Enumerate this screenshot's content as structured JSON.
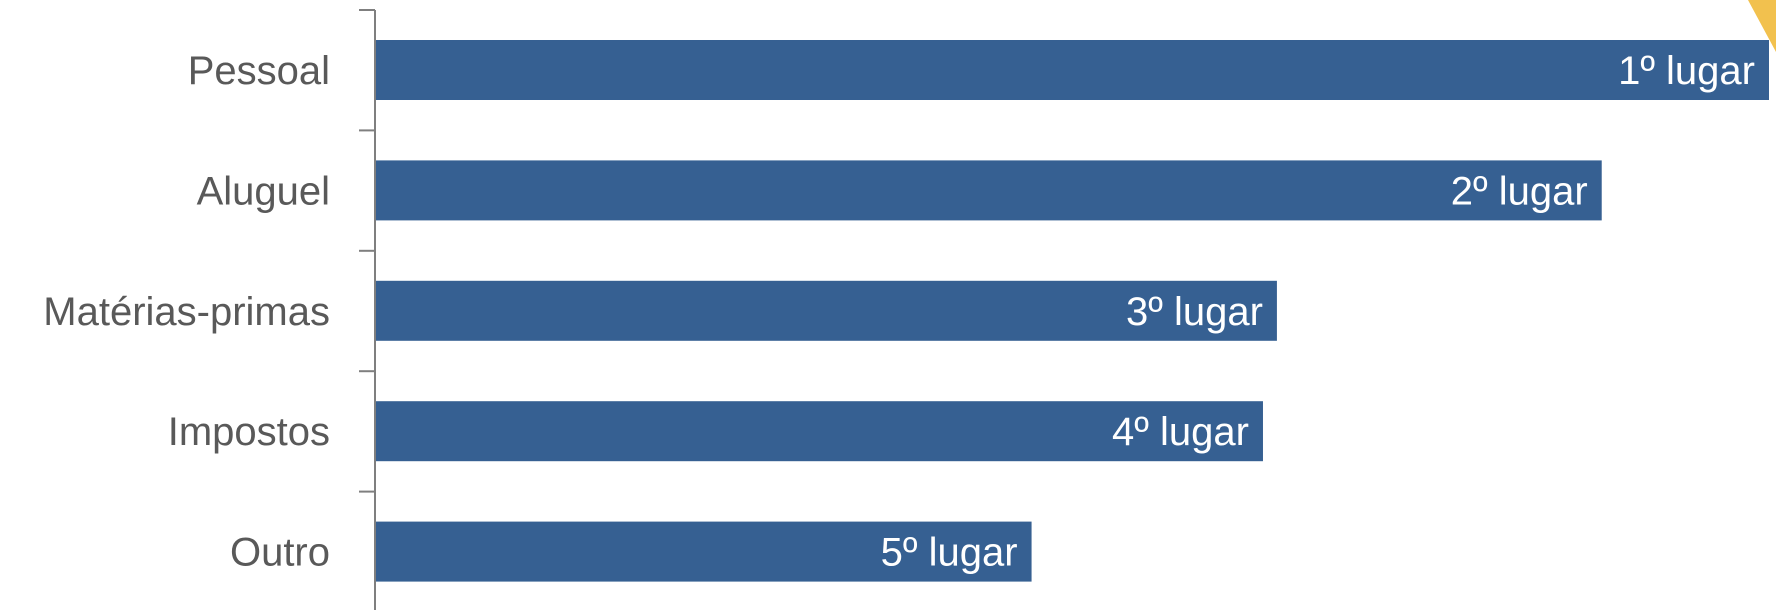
{
  "chart_data": {
    "type": "bar",
    "orientation": "horizontal",
    "categories": [
      "Pessoal",
      "Aluguel",
      "Matérias-primas",
      "Impostos",
      "Outro"
    ],
    "values": [
      100,
      88,
      64.7,
      63.7,
      47.1
    ],
    "data_labels": [
      "1º lugar",
      "2º lugar",
      "3º lugar",
      "4º lugar",
      "5º lugar"
    ],
    "title": "",
    "xlabel": "",
    "ylabel": "",
    "xlim": [
      0,
      100
    ],
    "grid": false,
    "legend": "none"
  },
  "colors": {
    "bar": "#366092",
    "corner_accent": "#F2C14E"
  }
}
